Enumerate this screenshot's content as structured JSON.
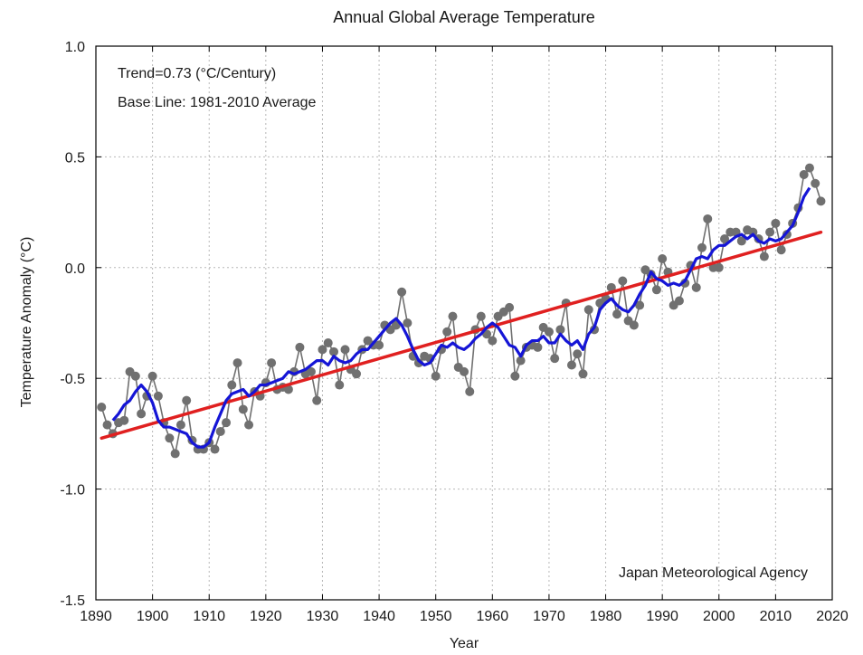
{
  "chart_data": {
    "type": "line",
    "title": "Annual Global Average Temperature",
    "xlabel": "Year",
    "ylabel": "Temperature Anomaly (°C)",
    "xlim": [
      1890,
      2020
    ],
    "ylim": [
      -1.5,
      1.0
    ],
    "x_ticks": [
      1890,
      1900,
      1910,
      1920,
      1930,
      1940,
      1950,
      1960,
      1970,
      1980,
      1990,
      2000,
      2010,
      2020
    ],
    "y_ticks": [
      1.0,
      0.5,
      0.0,
      -0.5,
      -1.0,
      -1.5
    ],
    "y_tick_labels": [
      "1.0",
      "0.5",
      "0.0",
      "-0.5",
      "-1.0",
      "-1.5"
    ],
    "grid": true,
    "annotations": {
      "trend": "Trend=0.73 (°C/Century)",
      "baseline": "Base Line: 1981-2010 Average",
      "source": "Japan Meteorological Agency"
    },
    "colors": {
      "annual": "#707070",
      "smoothed": "#1515d6",
      "trend": "#e02020",
      "grid": "#b8b8b8",
      "axis": "#000000"
    },
    "series": [
      {
        "name": "Annual anomaly",
        "style": "line-with-markers",
        "years": [
          1891,
          1892,
          1893,
          1894,
          1895,
          1896,
          1897,
          1898,
          1899,
          1900,
          1901,
          1902,
          1903,
          1904,
          1905,
          1906,
          1907,
          1908,
          1909,
          1910,
          1911,
          1912,
          1913,
          1914,
          1915,
          1916,
          1917,
          1918,
          1919,
          1920,
          1921,
          1922,
          1923,
          1924,
          1925,
          1926,
          1927,
          1928,
          1929,
          1930,
          1931,
          1932,
          1933,
          1934,
          1935,
          1936,
          1937,
          1938,
          1939,
          1940,
          1941,
          1942,
          1943,
          1944,
          1945,
          1946,
          1947,
          1948,
          1949,
          1950,
          1951,
          1952,
          1953,
          1954,
          1955,
          1956,
          1957,
          1958,
          1959,
          1960,
          1961,
          1962,
          1963,
          1964,
          1965,
          1966,
          1967,
          1968,
          1969,
          1970,
          1971,
          1972,
          1973,
          1974,
          1975,
          1976,
          1977,
          1978,
          1979,
          1980,
          1981,
          1982,
          1983,
          1984,
          1985,
          1986,
          1987,
          1988,
          1989,
          1990,
          1991,
          1992,
          1993,
          1994,
          1995,
          1996,
          1997,
          1998,
          1999,
          2000,
          2001,
          2002,
          2003,
          2004,
          2005,
          2006,
          2007,
          2008,
          2009,
          2010,
          2011,
          2012,
          2013,
          2014,
          2015,
          2016,
          2017,
          2018
        ],
        "values": [
          -0.63,
          -0.71,
          -0.75,
          -0.7,
          -0.69,
          -0.47,
          -0.49,
          -0.66,
          -0.58,
          -0.49,
          -0.58,
          -0.7,
          -0.77,
          -0.84,
          -0.71,
          -0.6,
          -0.78,
          -0.82,
          -0.82,
          -0.79,
          -0.82,
          -0.74,
          -0.7,
          -0.53,
          -0.43,
          -0.64,
          -0.71,
          -0.56,
          -0.58,
          -0.52,
          -0.43,
          -0.55,
          -0.54,
          -0.55,
          -0.47,
          -0.36,
          -0.48,
          -0.47,
          -0.6,
          -0.37,
          -0.34,
          -0.38,
          -0.53,
          -0.37,
          -0.46,
          -0.48,
          -0.37,
          -0.33,
          -0.35,
          -0.35,
          -0.26,
          -0.28,
          -0.26,
          -0.11,
          -0.25,
          -0.4,
          -0.43,
          -0.4,
          -0.41,
          -0.49,
          -0.37,
          -0.29,
          -0.22,
          -0.45,
          -0.47,
          -0.56,
          -0.28,
          -0.22,
          -0.3,
          -0.33,
          -0.22,
          -0.2,
          -0.18,
          -0.49,
          -0.42,
          -0.36,
          -0.35,
          -0.36,
          -0.27,
          -0.29,
          -0.41,
          -0.28,
          -0.16,
          -0.44,
          -0.39,
          -0.48,
          -0.19,
          -0.28,
          -0.16,
          -0.14,
          -0.09,
          -0.21,
          -0.06,
          -0.24,
          -0.26,
          -0.17,
          -0.01,
          -0.03,
          -0.1,
          0.04,
          -0.02,
          -0.17,
          -0.15,
          -0.07,
          0.01,
          -0.09,
          0.09,
          0.22,
          0.0,
          0.0,
          0.13,
          0.16,
          0.16,
          0.12,
          0.17,
          0.16,
          0.13,
          0.05,
          0.16,
          0.2,
          0.08,
          0.15,
          0.2,
          0.27,
          0.42,
          0.45,
          0.38,
          0.3
        ]
      },
      {
        "name": "5-year running mean",
        "style": "line",
        "years": [
          1893,
          1894,
          1895,
          1896,
          1897,
          1898,
          1899,
          1900,
          1901,
          1902,
          1903,
          1904,
          1905,
          1906,
          1907,
          1908,
          1909,
          1910,
          1911,
          1912,
          1913,
          1914,
          1915,
          1916,
          1917,
          1918,
          1919,
          1920,
          1921,
          1922,
          1923,
          1924,
          1925,
          1926,
          1927,
          1928,
          1929,
          1930,
          1931,
          1932,
          1933,
          1934,
          1935,
          1936,
          1937,
          1938,
          1939,
          1940,
          1941,
          1942,
          1943,
          1944,
          1945,
          1946,
          1947,
          1948,
          1949,
          1950,
          1951,
          1952,
          1953,
          1954,
          1955,
          1956,
          1957,
          1958,
          1959,
          1960,
          1961,
          1962,
          1963,
          1964,
          1965,
          1966,
          1967,
          1968,
          1969,
          1970,
          1971,
          1972,
          1973,
          1974,
          1975,
          1976,
          1977,
          1978,
          1979,
          1980,
          1981,
          1982,
          1983,
          1984,
          1985,
          1986,
          1987,
          1988,
          1989,
          1990,
          1991,
          1992,
          1993,
          1994,
          1995,
          1996,
          1997,
          1998,
          1999,
          2000,
          2001,
          2002,
          2003,
          2004,
          2005,
          2006,
          2007,
          2008,
          2009,
          2010,
          2011,
          2012,
          2013,
          2014,
          2015,
          2016
        ],
        "values": [
          -0.69,
          -0.66,
          -0.62,
          -0.6,
          -0.56,
          -0.53,
          -0.56,
          -0.61,
          -0.69,
          -0.72,
          -0.72,
          -0.73,
          -0.74,
          -0.75,
          -0.79,
          -0.81,
          -0.81,
          -0.79,
          -0.72,
          -0.66,
          -0.6,
          -0.57,
          -0.56,
          -0.55,
          -0.58,
          -0.56,
          -0.53,
          -0.53,
          -0.52,
          -0.51,
          -0.5,
          -0.47,
          -0.48,
          -0.47,
          -0.46,
          -0.44,
          -0.42,
          -0.42,
          -0.44,
          -0.4,
          -0.42,
          -0.43,
          -0.42,
          -0.39,
          -0.37,
          -0.37,
          -0.34,
          -0.31,
          -0.28,
          -0.25,
          -0.23,
          -0.26,
          -0.31,
          -0.37,
          -0.42,
          -0.44,
          -0.43,
          -0.39,
          -0.35,
          -0.36,
          -0.34,
          -0.36,
          -0.37,
          -0.35,
          -0.32,
          -0.3,
          -0.27,
          -0.25,
          -0.27,
          -0.31,
          -0.35,
          -0.36,
          -0.4,
          -0.35,
          -0.33,
          -0.33,
          -0.31,
          -0.34,
          -0.34,
          -0.3,
          -0.33,
          -0.35,
          -0.33,
          -0.37,
          -0.3,
          -0.27,
          -0.19,
          -0.16,
          -0.14,
          -0.17,
          -0.19,
          -0.2,
          -0.17,
          -0.12,
          -0.08,
          -0.02,
          -0.05,
          -0.06,
          -0.08,
          -0.07,
          -0.08,
          -0.06,
          -0.01,
          0.04,
          0.05,
          0.04,
          0.08,
          0.1,
          0.1,
          0.12,
          0.14,
          0.15,
          0.13,
          0.15,
          0.12,
          0.11,
          0.13,
          0.12,
          0.13,
          0.16,
          0.19,
          0.25,
          0.32,
          0.36
        ]
      },
      {
        "name": "Linear trend",
        "style": "line",
        "years": [
          1891,
          2018
        ],
        "values": [
          -0.77,
          0.16
        ]
      }
    ]
  }
}
